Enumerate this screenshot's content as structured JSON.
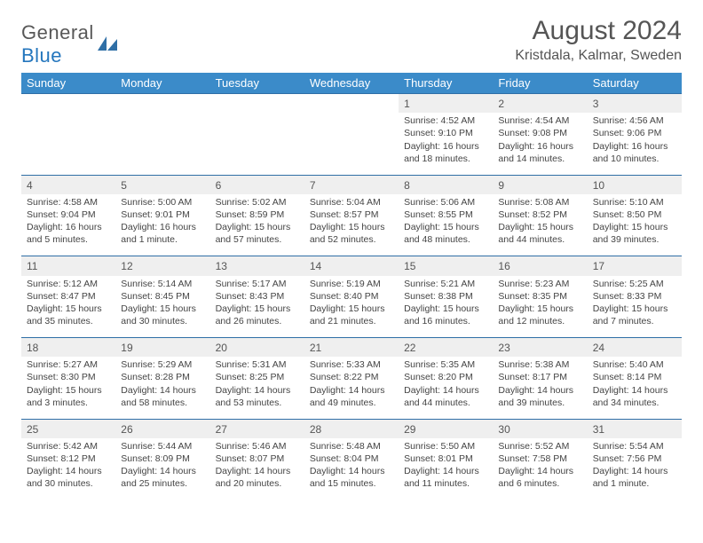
{
  "brand": {
    "first": "General",
    "second": "Blue"
  },
  "title": "August 2024",
  "subtitle": "Kristdala, Kalmar, Sweden",
  "colors": {
    "header_bg": "#3b8bc9",
    "header_text": "#ffffff",
    "rule": "#2f6fa6",
    "daynum_bg": "#efefef",
    "page_bg": "#ffffff",
    "text": "#444444",
    "title_text": "#555555",
    "brand_blue": "#2476bd",
    "brand_gray": "#585858"
  },
  "typography": {
    "title_fontsize": 30,
    "subtitle_fontsize": 16,
    "dayheader_fontsize": 13,
    "daynum_fontsize": 12,
    "cell_fontsize": 10.5
  },
  "day_headers": [
    "Sunday",
    "Monday",
    "Tuesday",
    "Wednesday",
    "Thursday",
    "Friday",
    "Saturday"
  ],
  "weeks": [
    [
      {
        "n": "",
        "sr": "",
        "ss": "",
        "dl": ""
      },
      {
        "n": "",
        "sr": "",
        "ss": "",
        "dl": ""
      },
      {
        "n": "",
        "sr": "",
        "ss": "",
        "dl": ""
      },
      {
        "n": "",
        "sr": "",
        "ss": "",
        "dl": ""
      },
      {
        "n": "1",
        "sr": "Sunrise: 4:52 AM",
        "ss": "Sunset: 9:10 PM",
        "dl": "Daylight: 16 hours and 18 minutes."
      },
      {
        "n": "2",
        "sr": "Sunrise: 4:54 AM",
        "ss": "Sunset: 9:08 PM",
        "dl": "Daylight: 16 hours and 14 minutes."
      },
      {
        "n": "3",
        "sr": "Sunrise: 4:56 AM",
        "ss": "Sunset: 9:06 PM",
        "dl": "Daylight: 16 hours and 10 minutes."
      }
    ],
    [
      {
        "n": "4",
        "sr": "Sunrise: 4:58 AM",
        "ss": "Sunset: 9:04 PM",
        "dl": "Daylight: 16 hours and 5 minutes."
      },
      {
        "n": "5",
        "sr": "Sunrise: 5:00 AM",
        "ss": "Sunset: 9:01 PM",
        "dl": "Daylight: 16 hours and 1 minute."
      },
      {
        "n": "6",
        "sr": "Sunrise: 5:02 AM",
        "ss": "Sunset: 8:59 PM",
        "dl": "Daylight: 15 hours and 57 minutes."
      },
      {
        "n": "7",
        "sr": "Sunrise: 5:04 AM",
        "ss": "Sunset: 8:57 PM",
        "dl": "Daylight: 15 hours and 52 minutes."
      },
      {
        "n": "8",
        "sr": "Sunrise: 5:06 AM",
        "ss": "Sunset: 8:55 PM",
        "dl": "Daylight: 15 hours and 48 minutes."
      },
      {
        "n": "9",
        "sr": "Sunrise: 5:08 AM",
        "ss": "Sunset: 8:52 PM",
        "dl": "Daylight: 15 hours and 44 minutes."
      },
      {
        "n": "10",
        "sr": "Sunrise: 5:10 AM",
        "ss": "Sunset: 8:50 PM",
        "dl": "Daylight: 15 hours and 39 minutes."
      }
    ],
    [
      {
        "n": "11",
        "sr": "Sunrise: 5:12 AM",
        "ss": "Sunset: 8:47 PM",
        "dl": "Daylight: 15 hours and 35 minutes."
      },
      {
        "n": "12",
        "sr": "Sunrise: 5:14 AM",
        "ss": "Sunset: 8:45 PM",
        "dl": "Daylight: 15 hours and 30 minutes."
      },
      {
        "n": "13",
        "sr": "Sunrise: 5:17 AM",
        "ss": "Sunset: 8:43 PM",
        "dl": "Daylight: 15 hours and 26 minutes."
      },
      {
        "n": "14",
        "sr": "Sunrise: 5:19 AM",
        "ss": "Sunset: 8:40 PM",
        "dl": "Daylight: 15 hours and 21 minutes."
      },
      {
        "n": "15",
        "sr": "Sunrise: 5:21 AM",
        "ss": "Sunset: 8:38 PM",
        "dl": "Daylight: 15 hours and 16 minutes."
      },
      {
        "n": "16",
        "sr": "Sunrise: 5:23 AM",
        "ss": "Sunset: 8:35 PM",
        "dl": "Daylight: 15 hours and 12 minutes."
      },
      {
        "n": "17",
        "sr": "Sunrise: 5:25 AM",
        "ss": "Sunset: 8:33 PM",
        "dl": "Daylight: 15 hours and 7 minutes."
      }
    ],
    [
      {
        "n": "18",
        "sr": "Sunrise: 5:27 AM",
        "ss": "Sunset: 8:30 PM",
        "dl": "Daylight: 15 hours and 3 minutes."
      },
      {
        "n": "19",
        "sr": "Sunrise: 5:29 AM",
        "ss": "Sunset: 8:28 PM",
        "dl": "Daylight: 14 hours and 58 minutes."
      },
      {
        "n": "20",
        "sr": "Sunrise: 5:31 AM",
        "ss": "Sunset: 8:25 PM",
        "dl": "Daylight: 14 hours and 53 minutes."
      },
      {
        "n": "21",
        "sr": "Sunrise: 5:33 AM",
        "ss": "Sunset: 8:22 PM",
        "dl": "Daylight: 14 hours and 49 minutes."
      },
      {
        "n": "22",
        "sr": "Sunrise: 5:35 AM",
        "ss": "Sunset: 8:20 PM",
        "dl": "Daylight: 14 hours and 44 minutes."
      },
      {
        "n": "23",
        "sr": "Sunrise: 5:38 AM",
        "ss": "Sunset: 8:17 PM",
        "dl": "Daylight: 14 hours and 39 minutes."
      },
      {
        "n": "24",
        "sr": "Sunrise: 5:40 AM",
        "ss": "Sunset: 8:14 PM",
        "dl": "Daylight: 14 hours and 34 minutes."
      }
    ],
    [
      {
        "n": "25",
        "sr": "Sunrise: 5:42 AM",
        "ss": "Sunset: 8:12 PM",
        "dl": "Daylight: 14 hours and 30 minutes."
      },
      {
        "n": "26",
        "sr": "Sunrise: 5:44 AM",
        "ss": "Sunset: 8:09 PM",
        "dl": "Daylight: 14 hours and 25 minutes."
      },
      {
        "n": "27",
        "sr": "Sunrise: 5:46 AM",
        "ss": "Sunset: 8:07 PM",
        "dl": "Daylight: 14 hours and 20 minutes."
      },
      {
        "n": "28",
        "sr": "Sunrise: 5:48 AM",
        "ss": "Sunset: 8:04 PM",
        "dl": "Daylight: 14 hours and 15 minutes."
      },
      {
        "n": "29",
        "sr": "Sunrise: 5:50 AM",
        "ss": "Sunset: 8:01 PM",
        "dl": "Daylight: 14 hours and 11 minutes."
      },
      {
        "n": "30",
        "sr": "Sunrise: 5:52 AM",
        "ss": "Sunset: 7:58 PM",
        "dl": "Daylight: 14 hours and 6 minutes."
      },
      {
        "n": "31",
        "sr": "Sunrise: 5:54 AM",
        "ss": "Sunset: 7:56 PM",
        "dl": "Daylight: 14 hours and 1 minute."
      }
    ]
  ]
}
